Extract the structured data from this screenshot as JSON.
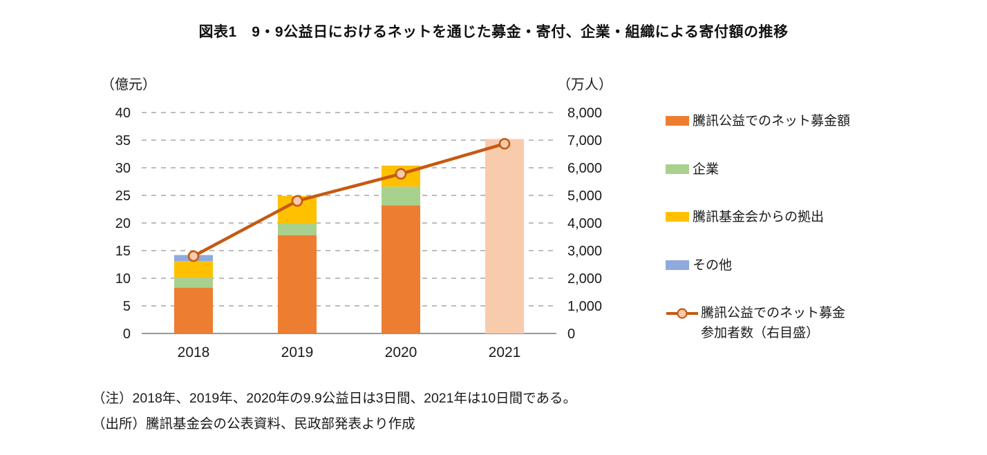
{
  "title": "図表1　9・9公益日におけるネットを通じた募金・寄付、企業・組織による寄付額の推移",
  "left_axis": {
    "unit": "（億元）",
    "ticks": [
      "0",
      "5",
      "10",
      "15",
      "20",
      "25",
      "30",
      "35",
      "40"
    ],
    "tick_values": [
      0,
      5,
      10,
      15,
      20,
      25,
      30,
      35,
      40
    ],
    "max": 40
  },
  "right_axis": {
    "unit": "（万人）",
    "ticks": [
      "0",
      "1,000",
      "2,000",
      "3,000",
      "4,000",
      "5,000",
      "6,000",
      "7,000",
      "8,000"
    ],
    "max": 8000
  },
  "chart_data": {
    "type": "stacked-bar+line",
    "categories": [
      "2018",
      "2019",
      "2020",
      "2021"
    ],
    "bar_unit": "億元",
    "series": [
      {
        "name": "騰訊公益でのネット募金額",
        "color": "#ED7D31",
        "values": [
          8.3,
          17.8,
          23.2,
          0
        ]
      },
      {
        "name": "企業",
        "color": "#A9D18E",
        "values": [
          1.8,
          2.2,
          3.4,
          0
        ]
      },
      {
        "name": "騰訊基金会からの拠出",
        "color": "#FFC000",
        "values": [
          3.0,
          4.9,
          3.8,
          0
        ]
      },
      {
        "name": "その他",
        "color": "#8FAADC",
        "values": [
          1.1,
          0,
          0,
          0
        ]
      }
    ],
    "total_only_bar": {
      "category": "2021",
      "color": "#F8CBAD",
      "value": 35.2
    },
    "line": {
      "name": "騰訊公益でのネット募金参加者数（右目盛）",
      "axis": "right",
      "unit": "万人",
      "color": "#C55A11",
      "marker_fill": "#F8CBAD",
      "values": [
        2800,
        4800,
        5780,
        6870
      ]
    },
    "grid": "dashed-horizontal",
    "legend_position": "right"
  },
  "legend": {
    "items": [
      {
        "label": "騰訊公益でのネット募金額",
        "color": "#ED7D31",
        "type": "bar"
      },
      {
        "label": "企業",
        "color": "#A9D18E",
        "type": "bar"
      },
      {
        "label": "騰訊基金会からの拠出",
        "color": "#FFC000",
        "type": "bar"
      },
      {
        "label": "その他",
        "color": "#8FAADC",
        "type": "bar"
      },
      {
        "label": "騰訊公益でのネット募金参加者数（右目盛）",
        "color": "#C55A11",
        "type": "line"
      }
    ]
  },
  "notes": {
    "note": "（注）2018年、2019年、2020年の9.9公益日は3日間、2021年は10日間である。",
    "source": "（出所）騰訊基金会の公表資料、民政部発表より作成"
  }
}
